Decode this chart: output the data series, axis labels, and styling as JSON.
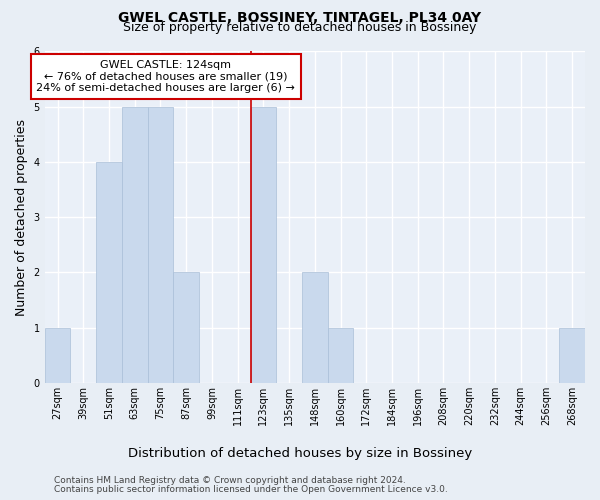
{
  "title": "GWEL CASTLE, BOSSINEY, TINTAGEL, PL34 0AY",
  "subtitle": "Size of property relative to detached houses in Bossiney",
  "xlabel_bottom": "Distribution of detached houses by size in Bossiney",
  "ylabel": "Number of detached properties",
  "footer1": "Contains HM Land Registry data © Crown copyright and database right 2024.",
  "footer2": "Contains public sector information licensed under the Open Government Licence v3.0.",
  "categories": [
    "27sqm",
    "39sqm",
    "51sqm",
    "63sqm",
    "75sqm",
    "87sqm",
    "99sqm",
    "111sqm",
    "123sqm",
    "135sqm",
    "148sqm",
    "160sqm",
    "172sqm",
    "184sqm",
    "196sqm",
    "208sqm",
    "220sqm",
    "232sqm",
    "244sqm",
    "256sqm",
    "268sqm"
  ],
  "values": [
    1,
    0,
    4,
    5,
    5,
    2,
    0,
    0,
    5,
    0,
    2,
    1,
    0,
    0,
    0,
    0,
    0,
    0,
    0,
    0,
    1
  ],
  "bar_color": "#c9d9ed",
  "bar_edge_color": "#aabfd8",
  "property_line_x": 7.5,
  "annotation_text": "GWEL CASTLE: 124sqm\n← 76% of detached houses are smaller (19)\n24% of semi-detached houses are larger (6) →",
  "annotation_box_color": "#ffffff",
  "annotation_box_edge_color": "#cc0000",
  "line_color": "#cc0000",
  "ylim": [
    0,
    6
  ],
  "yticks": [
    0,
    1,
    2,
    3,
    4,
    5,
    6
  ],
  "bg_color": "#e8eef5",
  "plot_bg_color": "#eaf0f8",
  "grid_color": "#ffffff",
  "title_fontsize": 10,
  "subtitle_fontsize": 9,
  "ylabel_fontsize": 9,
  "xlabel_fontsize": 9.5,
  "tick_fontsize": 7,
  "footer_fontsize": 6.5,
  "ann_fontsize": 8
}
